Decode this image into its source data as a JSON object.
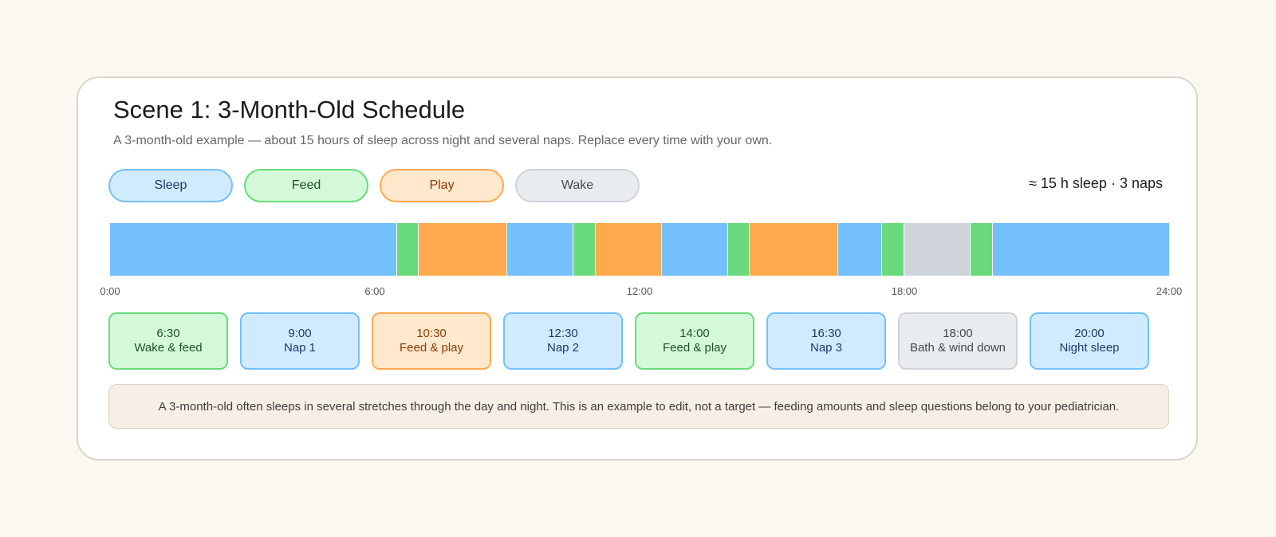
{
  "scene": {
    "title": "Scene 1: 3-Month-Old Schedule",
    "subtitle": "A 3-month-old example — about 15 hours of sleep across night and several naps. Replace every time with your own.",
    "summary": "≈ 15 h sleep · 3 naps",
    "note": "A 3-month-old often sleeps in several stretches through the day and night. This is an example to edit, not a target — feeding amounts and sleep questions belong to your pediatrician."
  },
  "categories": {
    "sleep": {
      "label": "Sleep",
      "bar": "#74c0fc",
      "fill": "#d0ebff",
      "border": "#74c0fc",
      "text": "#1f3a68"
    },
    "feed": {
      "label": "Feed",
      "bar": "#69db7c",
      "fill": "#d3f9d8",
      "border": "#69db7c",
      "text": "#1f5128"
    },
    "play": {
      "label": "Play",
      "bar": "#ffa94d",
      "fill": "#ffe8cc",
      "border": "#ffa94d",
      "text": "#8a3b0b"
    },
    "wake": {
      "label": "Wake",
      "bar": "#ced4da",
      "fill": "#e9ecef",
      "border": "#ced4da",
      "text": "#444a50"
    }
  },
  "legend": [
    "sleep",
    "feed",
    "play",
    "wake"
  ],
  "timeline": {
    "start_hour": 0,
    "end_hour": 24,
    "ticks": [
      "0:00",
      "6:00",
      "12:00",
      "18:00",
      "24:00"
    ],
    "segments": [
      {
        "start": 0,
        "end": 6.5,
        "type": "sleep"
      },
      {
        "start": 6.5,
        "end": 7.0,
        "type": "feed"
      },
      {
        "start": 7.0,
        "end": 9.0,
        "type": "play"
      },
      {
        "start": 9.0,
        "end": 10.5,
        "type": "sleep"
      },
      {
        "start": 10.5,
        "end": 11.0,
        "type": "feed"
      },
      {
        "start": 11.0,
        "end": 12.5,
        "type": "play"
      },
      {
        "start": 12.5,
        "end": 14.0,
        "type": "sleep"
      },
      {
        "start": 14.0,
        "end": 14.5,
        "type": "feed"
      },
      {
        "start": 14.5,
        "end": 16.5,
        "type": "play"
      },
      {
        "start": 16.5,
        "end": 17.5,
        "type": "sleep"
      },
      {
        "start": 17.5,
        "end": 18.0,
        "type": "feed"
      },
      {
        "start": 18.0,
        "end": 19.5,
        "type": "wake"
      },
      {
        "start": 19.5,
        "end": 20.0,
        "type": "feed"
      },
      {
        "start": 20.0,
        "end": 24.0,
        "type": "sleep"
      }
    ]
  },
  "events": [
    {
      "time": "6:30",
      "label": "Wake & feed",
      "type": "feed"
    },
    {
      "time": "9:00",
      "label": "Nap 1",
      "type": "sleep"
    },
    {
      "time": "10:30",
      "label": "Feed & play",
      "type": "play"
    },
    {
      "time": "12:30",
      "label": "Nap 2",
      "type": "sleep"
    },
    {
      "time": "14:00",
      "label": "Feed & play",
      "type": "feed"
    },
    {
      "time": "16:30",
      "label": "Nap 3",
      "type": "sleep"
    },
    {
      "time": "18:00",
      "label": "Bath & wind down",
      "type": "wake"
    },
    {
      "time": "20:00",
      "label": "Night sleep",
      "type": "sleep"
    }
  ]
}
